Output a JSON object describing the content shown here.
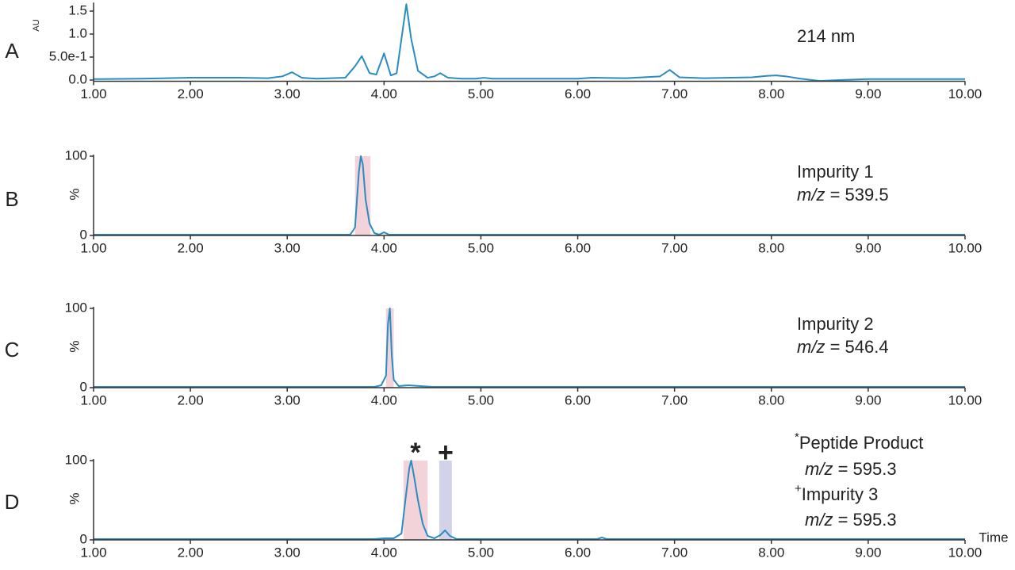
{
  "chart_data": [
    {
      "type": "line",
      "panel": "A",
      "ylabel": "AU",
      "color": "#2a8cc0",
      "x": [
        1.0,
        1.5,
        2.0,
        2.5,
        2.8,
        2.95,
        3.05,
        3.15,
        3.3,
        3.6,
        3.7,
        3.77,
        3.85,
        3.92,
        4.0,
        4.07,
        4.13,
        4.18,
        4.23,
        4.28,
        4.35,
        4.45,
        4.52,
        4.58,
        4.66,
        4.8,
        4.95,
        5.03,
        5.12,
        5.5,
        6.0,
        6.15,
        6.5,
        6.85,
        6.95,
        7.05,
        7.3,
        7.8,
        7.95,
        8.05,
        8.15,
        8.3,
        8.5,
        8.7,
        9.0,
        9.5,
        10.0
      ],
      "values": [
        0.02,
        0.03,
        0.05,
        0.05,
        0.04,
        0.08,
        0.17,
        0.05,
        0.03,
        0.05,
        0.3,
        0.52,
        0.15,
        0.12,
        0.58,
        0.1,
        0.15,
        0.9,
        1.65,
        0.9,
        0.2,
        0.05,
        0.08,
        0.15,
        0.05,
        0.03,
        0.03,
        0.05,
        0.03,
        0.03,
        0.03,
        0.05,
        0.04,
        0.08,
        0.22,
        0.06,
        0.04,
        0.06,
        0.09,
        0.1,
        0.08,
        0.03,
        -0.02,
        0.0,
        0.02,
        0.02,
        0.02
      ],
      "xlim": [
        1,
        10
      ],
      "xticks": [
        {
          "value": 1,
          "label": "1.00"
        },
        {
          "value": 2,
          "label": "2.00"
        },
        {
          "value": 3,
          "label": "3.00"
        },
        {
          "value": 4,
          "label": "4.00"
        },
        {
          "value": 5,
          "label": "5.00"
        },
        {
          "value": 6,
          "label": "6.00"
        },
        {
          "value": 7,
          "label": "7.00"
        },
        {
          "value": 8,
          "label": "8.00"
        },
        {
          "value": 9,
          "label": "9.00"
        },
        {
          "value": 10,
          "label": "10.00"
        }
      ],
      "ylim": [
        -0.03,
        1.65
      ],
      "yticks": [
        {
          "value": 0,
          "label": "0.0"
        },
        {
          "value": 0.5,
          "label": "5.0e-1"
        },
        {
          "value": 1,
          "label": "1.0"
        },
        1.5
      ],
      "annotations": [
        [
          {
            "text": "214 nm"
          }
        ]
      ]
    },
    {
      "type": "line",
      "panel": "B",
      "ylabel": "%",
      "color": "#2a8cc0",
      "x": [
        1.0,
        3.0,
        3.65,
        3.7,
        3.74,
        3.76,
        3.78,
        3.81,
        3.85,
        3.9,
        3.95,
        4.0,
        4.05,
        4.5,
        6.0,
        8.0,
        10.0
      ],
      "values": [
        1,
        1,
        1,
        10,
        80,
        100,
        90,
        45,
        15,
        3,
        1,
        4,
        1,
        1,
        1,
        1,
        1
      ],
      "xlim": [
        1,
        10
      ],
      "xticks": [
        {
          "value": 1,
          "label": "1.00"
        },
        {
          "value": 2,
          "label": "2.00"
        },
        {
          "value": 3,
          "label": "3.00"
        },
        {
          "value": 4,
          "label": "4.00"
        },
        {
          "value": 5,
          "label": "5.00"
        },
        {
          "value": 6,
          "label": "6.00"
        },
        {
          "value": 7,
          "label": "7.00"
        },
        {
          "value": 8,
          "label": "8.00"
        },
        {
          "value": 9,
          "label": "9.00"
        },
        {
          "value": 10,
          "label": "10.00"
        }
      ],
      "ylim": [
        0,
        100
      ],
      "yticks": [
        0,
        100
      ],
      "highlights": [
        {
          "xmin": 3.7,
          "xmax": 3.86,
          "color": "#f2d3da"
        }
      ],
      "annotations": [
        [
          {
            "text": "Impurity 1"
          }
        ],
        [
          {
            "italic": "m/z",
            "text": " = 539.5"
          }
        ]
      ]
    },
    {
      "type": "line",
      "panel": "C",
      "ylabel": "%",
      "color": "#2a8cc0",
      "x": [
        1.0,
        3.0,
        3.9,
        3.97,
        4.02,
        4.04,
        4.06,
        4.08,
        4.1,
        4.15,
        4.25,
        4.5,
        6.0,
        8.0,
        10.0
      ],
      "values": [
        1,
        1,
        1,
        3,
        15,
        80,
        100,
        40,
        10,
        2,
        3,
        1,
        1,
        1,
        1
      ],
      "xlim": [
        1,
        10
      ],
      "xticks": [
        {
          "value": 1,
          "label": "1.00"
        },
        {
          "value": 2,
          "label": "2.00"
        },
        {
          "value": 3,
          "label": "3.00"
        },
        {
          "value": 4,
          "label": "4.00"
        },
        {
          "value": 5,
          "label": "5.00"
        },
        {
          "value": 6,
          "label": "6.00"
        },
        {
          "value": 7,
          "label": "7.00"
        },
        {
          "value": 8,
          "label": "8.00"
        },
        {
          "value": 9,
          "label": "9.00"
        },
        {
          "value": 10,
          "label": "10.00"
        }
      ],
      "ylim": [
        0,
        100
      ],
      "yticks": [
        0,
        100
      ],
      "highlights": [
        {
          "xmin": 4.02,
          "xmax": 4.1,
          "color": "#f2d3da"
        }
      ],
      "annotations": [
        [
          {
            "text": "Impurity 2"
          }
        ],
        [
          {
            "italic": "m/z",
            "text": " = 546.4"
          }
        ]
      ]
    },
    {
      "type": "line",
      "panel": "D",
      "ylabel": "%",
      "xlabel": "Time",
      "color": "#2a8cc0",
      "x": [
        1.0,
        3.9,
        4.0,
        4.1,
        4.18,
        4.22,
        4.26,
        4.28,
        4.31,
        4.35,
        4.4,
        4.45,
        4.52,
        4.58,
        4.63,
        4.68,
        4.75,
        5.0,
        6.2,
        6.25,
        6.3,
        8.0,
        10.0
      ],
      "values": [
        1,
        1,
        2,
        2,
        8,
        50,
        90,
        100,
        80,
        50,
        20,
        5,
        2,
        6,
        12,
        5,
        1,
        1,
        1,
        3,
        1,
        1,
        1
      ],
      "xlim": [
        1,
        10
      ],
      "xticks": [
        {
          "value": 1,
          "label": "1.00"
        },
        {
          "value": 2,
          "label": "2.00"
        },
        {
          "value": 3,
          "label": "3.00"
        },
        {
          "value": 4,
          "label": "4.00"
        },
        {
          "value": 5,
          "label": "5.00"
        },
        {
          "value": 6,
          "label": "6.00"
        },
        {
          "value": 7,
          "label": "7.00"
        },
        {
          "value": 8,
          "label": "8.00"
        },
        {
          "value": 9,
          "label": "9.00"
        },
        {
          "value": 10,
          "label": "10.00"
        }
      ],
      "ylim": [
        0,
        100
      ],
      "yticks": [
        0,
        100
      ],
      "highlights": [
        {
          "xmin": 4.2,
          "xmax": 4.45,
          "color": "#f2d3da",
          "label": "*"
        },
        {
          "xmin": 4.57,
          "xmax": 4.7,
          "color": "#d2d2e8",
          "label": "+"
        }
      ],
      "annotations": [
        [
          {
            "sup": "*",
            "text": "Peptide Product"
          }
        ],
        [
          {
            "italic": "m/z",
            "text": " = 595.3"
          }
        ],
        [
          {
            "sup": "+",
            "text": "Impurity 3"
          }
        ],
        [
          {
            "italic": "m/z",
            "text": " = 595.3"
          }
        ]
      ]
    }
  ]
}
